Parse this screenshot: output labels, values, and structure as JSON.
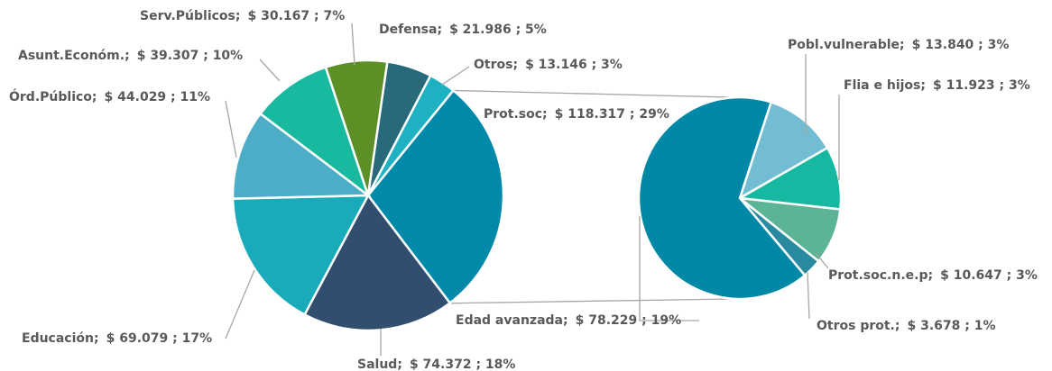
{
  "chart_data": {
    "type": "pie-of-pie",
    "separator": ";",
    "main": {
      "categories": [
        "Prot.soc",
        "Salud",
        "Educación",
        "Órd.Público",
        "Asunt.Económ.",
        "Serv.Públicos",
        "Defensa",
        "Otros"
      ],
      "values": [
        118.317,
        74.372,
        69.079,
        44.029,
        39.307,
        30.167,
        21.986,
        13.146
      ],
      "value_labels": [
        "$ 118.317 ; 29%",
        "$ 74.372 ; 18%",
        "$ 69.079 ; 17%",
        "$ 44.029 ; 11%",
        "$ 39.307 ; 10%",
        "$ 30.167 ; 7%",
        "$ 21.986 ; 5%",
        "$ 13.146 ; 3%"
      ],
      "colors": [
        "#0089a8",
        "#324e6f",
        "#1aabbb",
        "#4badc6",
        "#19b9a0",
        "#5d8f27",
        "#286a7a",
        "#1db1c2"
      ]
    },
    "secondary": {
      "categories": [
        "Pobl.vulnerable",
        "Flia e hijos",
        "Prot.soc.n.e.p",
        "Otros prot.",
        "Edad avanzada"
      ],
      "values": [
        13.84,
        11.923,
        10.647,
        3.678,
        78.229
      ],
      "value_labels": [
        "$ 13.840 ; 3%",
        "$ 11.923 ; 3%",
        "$ 10.647 ; 3%",
        "$ 3.678 ; 1%",
        "$ 78.229 ; 19%"
      ],
      "colors": [
        "#72bdd3",
        "#17b8a2",
        "#5bb595",
        "#2a8aa0",
        "#0088a6"
      ]
    }
  }
}
